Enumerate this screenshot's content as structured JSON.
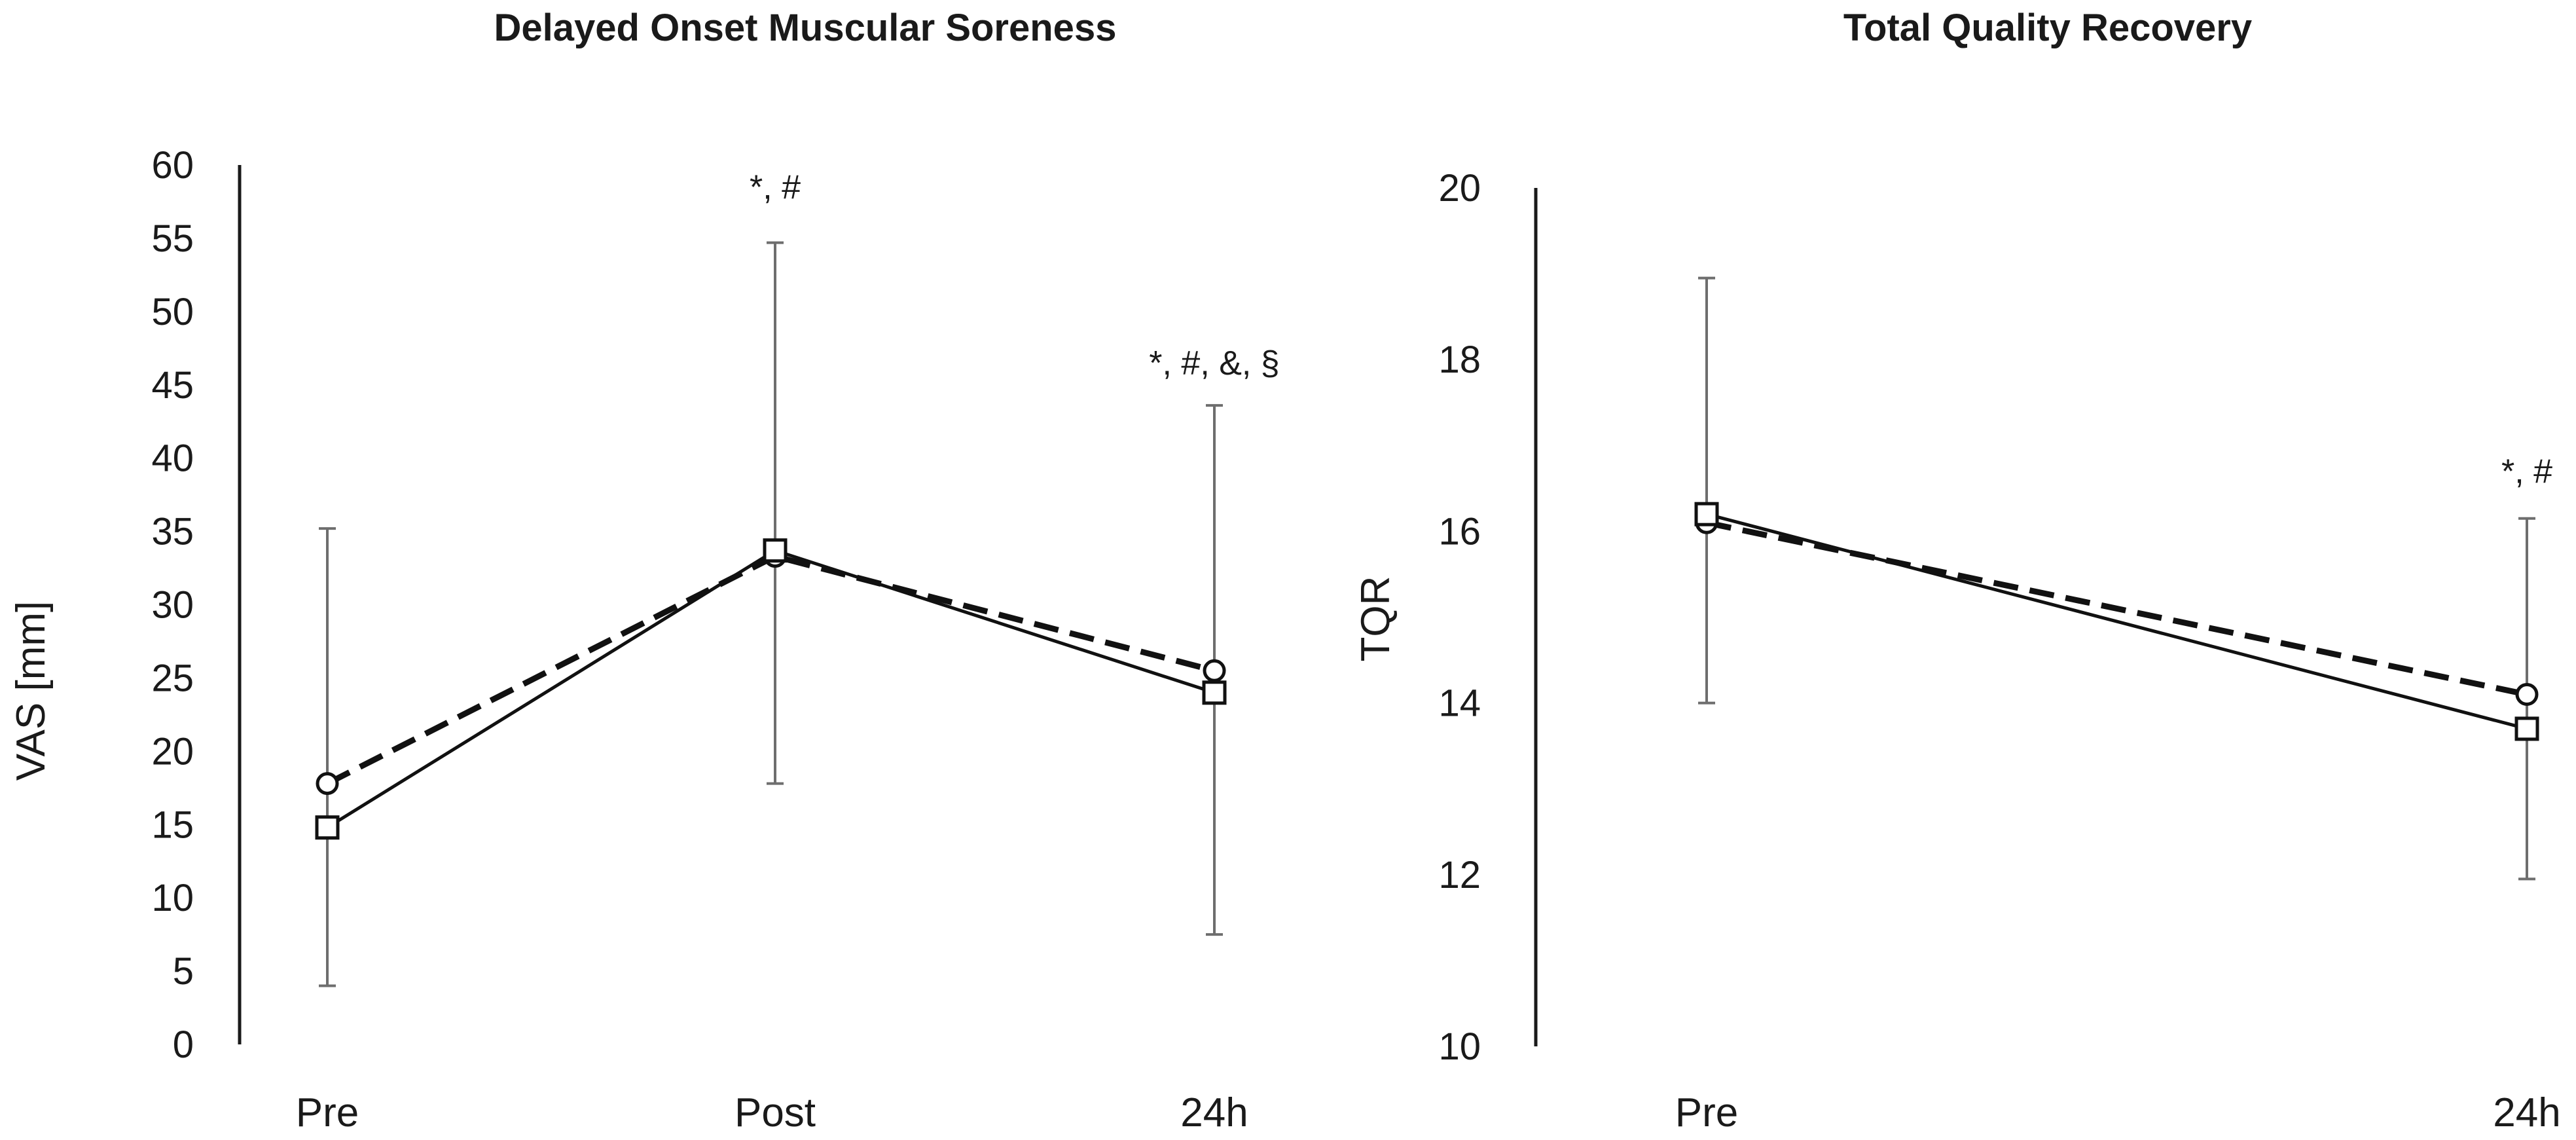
{
  "chart_data": [
    {
      "type": "line",
      "title": "Delayed Onset Muscular Soreness",
      "xlabel": "",
      "ylabel": "VAS  [mm]",
      "ylim": [
        0,
        60
      ],
      "yticks": [
        0,
        5,
        10,
        15,
        20,
        25,
        30,
        35,
        40,
        45,
        50,
        55,
        60
      ],
      "categories": [
        "Pre",
        "Post",
        "24h"
      ],
      "series": [
        {
          "name": "circle-dashed",
          "marker": "circle",
          "line": "dashed",
          "values": [
            17.8,
            33.3,
            25.5
          ]
        },
        {
          "name": "square-solid",
          "marker": "square",
          "line": "solid",
          "values": [
            14.8,
            33.7,
            24.0
          ]
        }
      ],
      "error_bars": [
        {
          "low": 4.0,
          "high": 35.2
        },
        {
          "low": 17.8,
          "high": 54.7
        },
        {
          "low": 7.5,
          "high": 43.6
        }
      ],
      "annotations": [
        {
          "category": "Post",
          "text": "*, #",
          "value": 58.5
        },
        {
          "category": "24h",
          "text": "*, #, &, §",
          "value": 46.5
        }
      ]
    },
    {
      "type": "line",
      "title": "Total Quality Recovery",
      "xlabel": "",
      "ylabel": "TQR",
      "ylim": [
        10,
        20
      ],
      "yticks": [
        10,
        12,
        14,
        16,
        18,
        20
      ],
      "categories": [
        "Pre",
        "24h"
      ],
      "series": [
        {
          "name": "circle-dashed",
          "marker": "circle",
          "line": "dashed",
          "values": [
            16.1,
            14.1
          ]
        },
        {
          "name": "square-solid",
          "marker": "square",
          "line": "solid",
          "values": [
            16.2,
            13.7
          ]
        }
      ],
      "error_bars": [
        {
          "low": 14.0,
          "high": 18.95
        },
        {
          "low": 11.95,
          "high": 16.15
        }
      ],
      "annotations": [
        {
          "category": "24h",
          "text": "*, #",
          "value": 16.7
        }
      ]
    }
  ]
}
